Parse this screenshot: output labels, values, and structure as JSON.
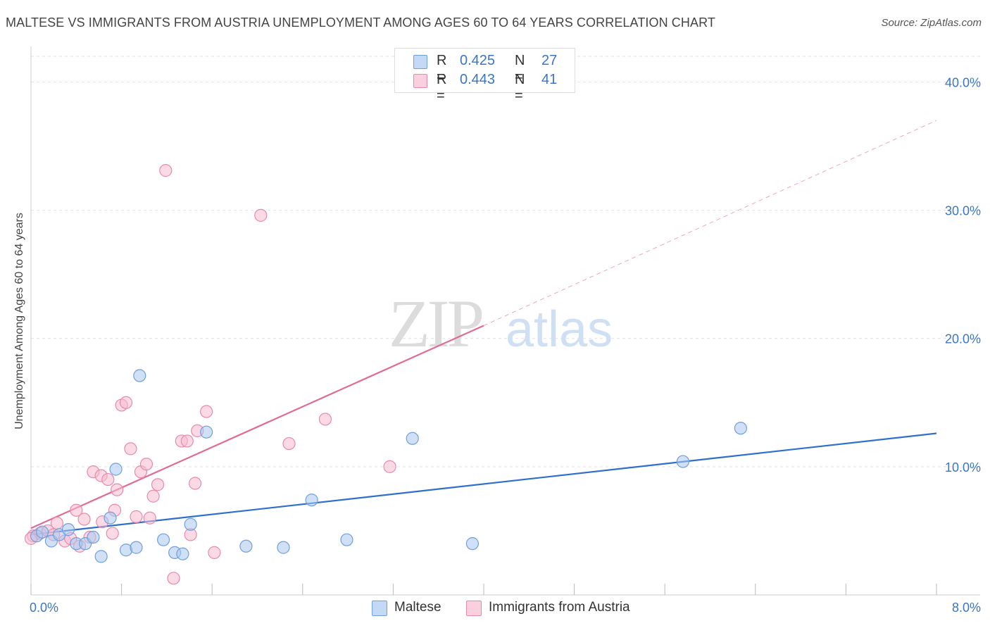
{
  "title": "MALTESE VS IMMIGRANTS FROM AUSTRIA UNEMPLOYMENT AMONG AGES 60 TO 64 YEARS CORRELATION CHART",
  "source": "Source: ZipAtlas.com",
  "watermark": {
    "zip": "ZIP",
    "atlas": "atlas"
  },
  "legend": {
    "rows": [
      {
        "r_label": "R =",
        "r_value": "0.425",
        "n_label": "N =",
        "n_value": "27",
        "color": "#a9c8f0",
        "border": "#6f9fdc"
      },
      {
        "r_label": "R =",
        "r_value": "0.443",
        "n_label": "N =",
        "n_value": "41",
        "color": "#f7bcd0",
        "border": "#e88aaa"
      }
    ]
  },
  "bottom_legend": {
    "maltese": "Maltese",
    "austria": "Immigrants from Austria"
  },
  "chart_data": {
    "type": "scatter",
    "title": "MALTESE VS IMMIGRANTS FROM AUSTRIA UNEMPLOYMENT AMONG AGES 60 TO 64 YEARS CORRELATION CHART",
    "xlabel": "",
    "ylabel": "Unemployment Among Ages 60 to 64 years",
    "xlim": [
      0,
      8
    ],
    "ylim": [
      0,
      42
    ],
    "x_tick_labels": [
      "0.0%",
      "8.0%"
    ],
    "y_ticks": [
      10,
      20,
      30,
      40
    ],
    "y_tick_labels": [
      "10.0%",
      "20.0%",
      "30.0%",
      "40.0%"
    ],
    "grid": true,
    "series": [
      {
        "name": "Maltese",
        "color": "#6f9fdc",
        "fill": "#a9c8f0",
        "line_color": "#2f6fce",
        "trend": {
          "x": [
            0,
            8
          ],
          "y": [
            4.7,
            12.6
          ]
        },
        "points": [
          {
            "x": 0.05,
            "y": 4.6
          },
          {
            "x": 0.1,
            "y": 4.9
          },
          {
            "x": 0.18,
            "y": 4.2
          },
          {
            "x": 0.25,
            "y": 4.7
          },
          {
            "x": 0.33,
            "y": 5.1
          },
          {
            "x": 0.4,
            "y": 4.0
          },
          {
            "x": 0.48,
            "y": 4.0
          },
          {
            "x": 0.55,
            "y": 4.5
          },
          {
            "x": 0.62,
            "y": 3.0
          },
          {
            "x": 0.7,
            "y": 6.0
          },
          {
            "x": 0.75,
            "y": 9.8
          },
          {
            "x": 0.84,
            "y": 3.5
          },
          {
            "x": 0.93,
            "y": 3.7
          },
          {
            "x": 0.96,
            "y": 17.1
          },
          {
            "x": 1.17,
            "y": 4.3
          },
          {
            "x": 1.27,
            "y": 3.3
          },
          {
            "x": 1.34,
            "y": 3.2
          },
          {
            "x": 1.41,
            "y": 5.5
          },
          {
            "x": 1.55,
            "y": 12.7
          },
          {
            "x": 1.9,
            "y": 3.8
          },
          {
            "x": 2.23,
            "y": 3.7
          },
          {
            "x": 2.48,
            "y": 7.4
          },
          {
            "x": 2.79,
            "y": 4.3
          },
          {
            "x": 3.37,
            "y": 12.2
          },
          {
            "x": 3.9,
            "y": 4.0
          },
          {
            "x": 5.76,
            "y": 10.4
          },
          {
            "x": 6.27,
            "y": 13.0
          }
        ]
      },
      {
        "name": "Immigrants from Austria",
        "color": "#e88aaa",
        "fill": "#f7bcd0",
        "line_color": "#e06b94",
        "trend": {
          "x": [
            0,
            4.0
          ],
          "y": [
            5.2,
            21.0
          ]
        },
        "trend_extension": {
          "x": [
            4.0,
            8
          ],
          "y": [
            21.0,
            37.0
          ]
        },
        "points": [
          {
            "x": 0.02,
            "y": 4.6
          },
          {
            "x": 0.08,
            "y": 4.8
          },
          {
            "x": 0.15,
            "y": 5.0
          },
          {
            "x": 0.2,
            "y": 4.7
          },
          {
            "x": 0.23,
            "y": 5.6
          },
          {
            "x": 0.3,
            "y": 4.2
          },
          {
            "x": 0.35,
            "y": 4.4
          },
          {
            "x": 0.4,
            "y": 6.6
          },
          {
            "x": 0.43,
            "y": 3.8
          },
          {
            "x": 0.47,
            "y": 5.9
          },
          {
            "x": 0.52,
            "y": 4.5
          },
          {
            "x": 0.55,
            "y": 9.6
          },
          {
            "x": 0.62,
            "y": 9.3
          },
          {
            "x": 0.63,
            "y": 5.7
          },
          {
            "x": 0.68,
            "y": 9.0
          },
          {
            "x": 0.72,
            "y": 4.8
          },
          {
            "x": 0.74,
            "y": 6.6
          },
          {
            "x": 0.76,
            "y": 8.2
          },
          {
            "x": 0.8,
            "y": 14.8
          },
          {
            "x": 0.84,
            "y": 15.0
          },
          {
            "x": 0.88,
            "y": 11.4
          },
          {
            "x": 0.93,
            "y": 6.1
          },
          {
            "x": 0.97,
            "y": 9.6
          },
          {
            "x": 1.02,
            "y": 10.2
          },
          {
            "x": 1.05,
            "y": 6.0
          },
          {
            "x": 1.08,
            "y": 7.7
          },
          {
            "x": 1.12,
            "y": 8.6
          },
          {
            "x": 1.19,
            "y": 33.1
          },
          {
            "x": 1.26,
            "y": 1.3
          },
          {
            "x": 1.33,
            "y": 12.0
          },
          {
            "x": 1.38,
            "y": 12.0
          },
          {
            "x": 1.41,
            "y": 4.7
          },
          {
            "x": 1.45,
            "y": 8.7
          },
          {
            "x": 1.47,
            "y": 12.8
          },
          {
            "x": 1.55,
            "y": 14.3
          },
          {
            "x": 1.62,
            "y": 3.3
          },
          {
            "x": 2.03,
            "y": 29.6
          },
          {
            "x": 2.28,
            "y": 11.8
          },
          {
            "x": 2.6,
            "y": 13.7
          },
          {
            "x": 3.17,
            "y": 10.0
          },
          {
            "x": 0.0,
            "y": 4.4
          }
        ]
      }
    ]
  }
}
